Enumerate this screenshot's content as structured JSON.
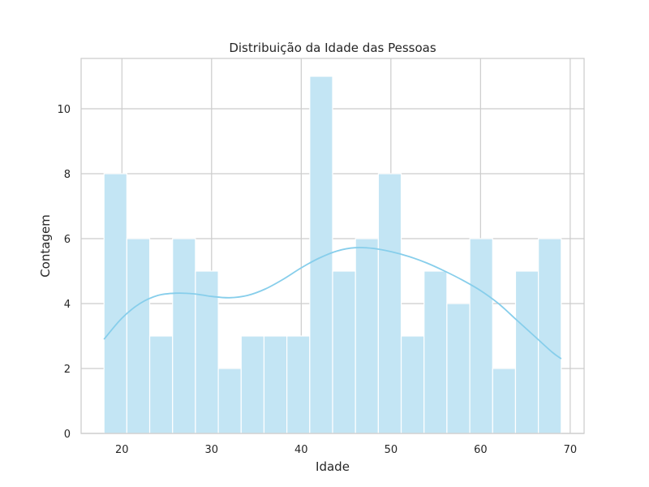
{
  "chart_data": {
    "type": "bar",
    "title": "Distribuição da Idade das Pessoas",
    "xlabel": "Idade",
    "ylabel": "Contagem",
    "xlim": [
      15.45,
      71.55
    ],
    "ylim": [
      0,
      11.55
    ],
    "x_ticks": [
      20,
      30,
      40,
      50,
      60,
      70
    ],
    "y_ticks": [
      0,
      2,
      4,
      6,
      8,
      10
    ],
    "grid": true,
    "bins": [
      {
        "start": 18.0,
        "end": 20.55,
        "count": 8
      },
      {
        "start": 20.55,
        "end": 23.1,
        "count": 6
      },
      {
        "start": 23.1,
        "end": 25.65,
        "count": 3
      },
      {
        "start": 25.65,
        "end": 28.2,
        "count": 6
      },
      {
        "start": 28.2,
        "end": 30.75,
        "count": 5
      },
      {
        "start": 30.75,
        "end": 33.3,
        "count": 2
      },
      {
        "start": 33.3,
        "end": 35.85,
        "count": 3
      },
      {
        "start": 35.85,
        "end": 38.4,
        "count": 3
      },
      {
        "start": 38.4,
        "end": 40.95,
        "count": 3
      },
      {
        "start": 40.95,
        "end": 43.5,
        "count": 11
      },
      {
        "start": 43.5,
        "end": 46.05,
        "count": 5
      },
      {
        "start": 46.05,
        "end": 48.6,
        "count": 6
      },
      {
        "start": 48.6,
        "end": 51.15,
        "count": 8
      },
      {
        "start": 51.15,
        "end": 53.7,
        "count": 3
      },
      {
        "start": 53.7,
        "end": 56.25,
        "count": 5
      },
      {
        "start": 56.25,
        "end": 58.8,
        "count": 4
      },
      {
        "start": 58.8,
        "end": 61.35,
        "count": 6
      },
      {
        "start": 61.35,
        "end": 63.9,
        "count": 2
      },
      {
        "start": 63.9,
        "end": 66.45,
        "count": 5
      },
      {
        "start": 66.45,
        "end": 69.0,
        "count": 6
      }
    ],
    "kde": {
      "x": [
        18,
        20,
        22,
        24,
        26,
        28,
        30,
        32,
        34,
        36,
        38,
        40,
        42,
        44,
        46,
        48,
        50,
        52,
        54,
        56,
        58,
        60,
        62,
        64,
        66,
        68,
        69
      ],
      "y": [
        2.9,
        3.55,
        4.0,
        4.25,
        4.32,
        4.3,
        4.22,
        4.18,
        4.25,
        4.45,
        4.75,
        5.1,
        5.4,
        5.62,
        5.72,
        5.7,
        5.6,
        5.45,
        5.25,
        5.0,
        4.72,
        4.4,
        4.0,
        3.5,
        3.0,
        2.5,
        2.3
      ]
    },
    "colors": {
      "bar_fill": "#c3e5f4",
      "bar_edge": "#ffffff",
      "kde_line": "#87ceeb",
      "grid": "#cccccc",
      "axes_edge": "#cccccc",
      "text": "#262626"
    }
  }
}
